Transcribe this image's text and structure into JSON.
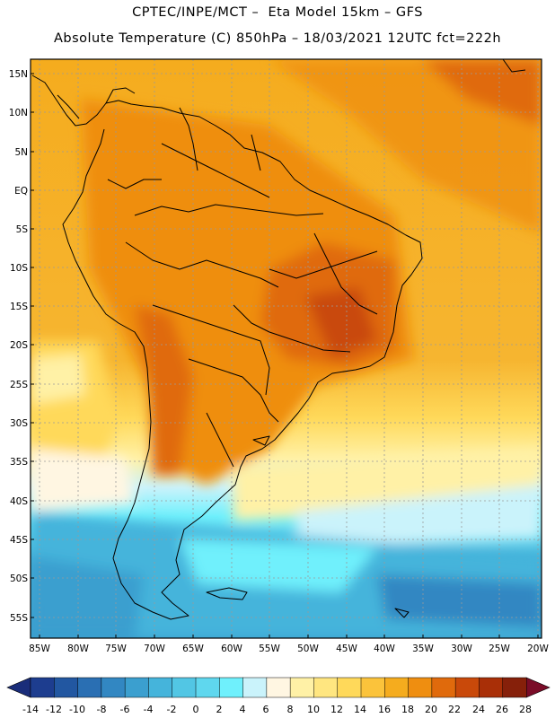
{
  "header": {
    "line1": "CPTEC/INPE/MCT –  Eta Model 15km – GFS",
    "line2": "Absolute Temperature (C) 850hPa – 18/03/2021 12UTC fct=222h"
  },
  "map": {
    "lat_ticks": [
      "15N",
      "10N",
      "5N",
      "EQ",
      "5S",
      "10S",
      "15S",
      "20S",
      "25S",
      "30S",
      "35S",
      "40S",
      "45S",
      "50S",
      "55S"
    ],
    "lon_ticks": [
      "85W",
      "80W",
      "75W",
      "70W",
      "65W",
      "60W",
      "55W",
      "50W",
      "45W",
      "40W",
      "35W",
      "30W",
      "25W",
      "20W"
    ]
  },
  "colorbar": {
    "labels": [
      "-14",
      "-12",
      "-10",
      "-8",
      "-6",
      "-4",
      "-2",
      "0",
      "2",
      "4",
      "6",
      "8",
      "10",
      "12",
      "14",
      "16",
      "18",
      "20",
      "22",
      "24",
      "26",
      "28"
    ],
    "colors": [
      "#1d3d8f",
      "#2257a1",
      "#2a6fb3",
      "#3287c2",
      "#3b9fcf",
      "#45b4db",
      "#52c6e4",
      "#5fd7ee",
      "#6ff0fc",
      "#caf3fb",
      "#fff6e2",
      "#fff1a6",
      "#ffe680",
      "#ffd95a",
      "#fbc33b",
      "#f5ac1e",
      "#ef8e10",
      "#e06a0c",
      "#c9490a",
      "#a92f07",
      "#86200a"
    ],
    "under_color": "#1a2d7a",
    "over_color": "#7a0c28"
  }
}
